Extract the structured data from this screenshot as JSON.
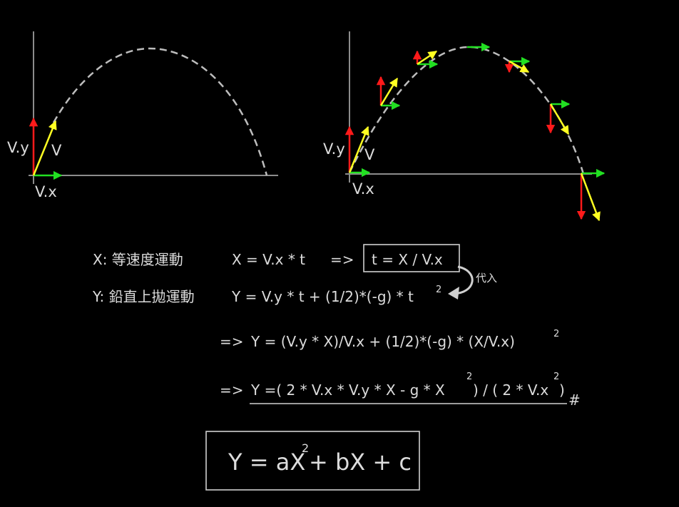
{
  "colors": {
    "background": "#000000",
    "axis": "#8c8c8c",
    "trajectory": "#bdbdbd",
    "text": "#dcdcdc",
    "vy_arrow": "#ff1a1a",
    "vx_arrow": "#22e022",
    "v_arrow": "#ffff22",
    "box": "#cfcfcf"
  },
  "left_diagram": {
    "label_vy": "V.y",
    "label_v": "V",
    "label_vx": "V.x"
  },
  "right_diagram": {
    "label_vy": "V.y",
    "label_v": "V",
    "label_vx": "V.x"
  },
  "equations": {
    "x_label": "X: 等速度運動",
    "x_eq": "X = V.x * t",
    "x_arrow": "=>",
    "t_boxed": "t = X / V.x",
    "substitute": "代入",
    "y_label": "Y: 鉛直上拋運動",
    "y_eq": "Y = V.y * t + (1/2)*(-g) * t",
    "y_eq_sup": "2",
    "step1_arrow": "=>",
    "step1": "Y = (V.y * X)/V.x + (1/2)*(-g) * (X/V.x)",
    "step1_sup": "2",
    "step2_arrow": "=>",
    "step2_a": "Y =( 2 * V.x * V.y * X - g * X",
    "step2_sup1": "2",
    "step2_b": ") / ( 2 * V.x",
    "step2_sup2": "2",
    "step2_c": ")",
    "step2_mark": "#",
    "final_a": "Y = aX",
    "final_sup": "2",
    "final_b": "+ bX + c"
  }
}
